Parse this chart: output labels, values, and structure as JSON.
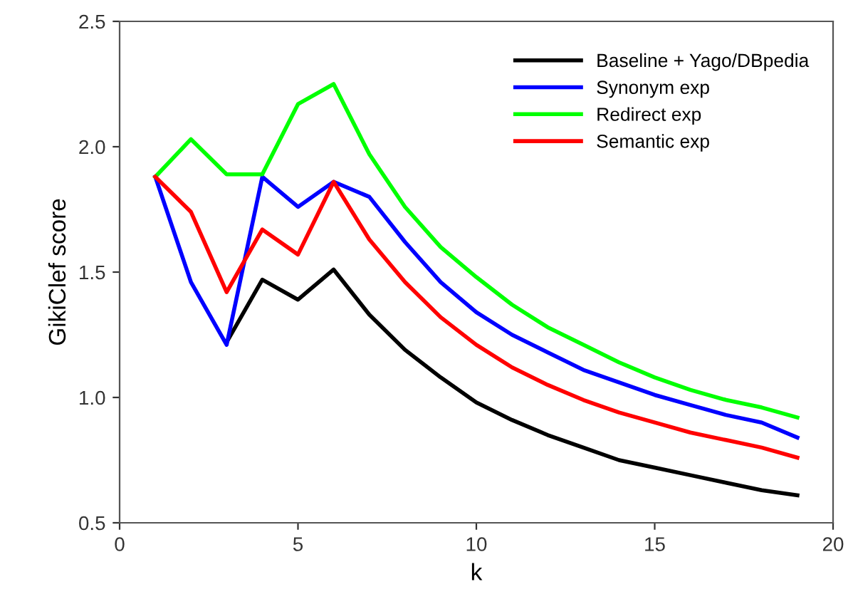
{
  "chart_data": {
    "type": "line",
    "xlabel": "k",
    "ylabel": "GikiClef score",
    "x": [
      1,
      2,
      3,
      4,
      5,
      6,
      7,
      8,
      9,
      10,
      11,
      12,
      13,
      14,
      15,
      16,
      17,
      18,
      19
    ],
    "series": [
      {
        "name": "Baseline + Yago/DBpedia",
        "color": "#000000",
        "values": [
          null,
          null,
          1.22,
          1.47,
          1.39,
          1.51,
          1.33,
          1.19,
          1.08,
          0.98,
          0.91,
          0.85,
          0.8,
          0.75,
          0.72,
          0.69,
          0.66,
          0.63,
          0.61
        ]
      },
      {
        "name": "Synonym exp",
        "color": "#0000ff",
        "values": [
          1.88,
          1.46,
          1.21,
          1.88,
          1.76,
          1.86,
          1.8,
          1.62,
          1.46,
          1.34,
          1.25,
          1.18,
          1.11,
          1.06,
          1.01,
          0.97,
          0.93,
          0.9,
          0.84
        ]
      },
      {
        "name": "Redirect exp",
        "color": "#00ff00",
        "values": [
          1.88,
          2.03,
          1.89,
          1.89,
          2.17,
          2.25,
          1.97,
          1.76,
          1.6,
          1.48,
          1.37,
          1.28,
          1.21,
          1.14,
          1.08,
          1.03,
          0.99,
          0.96,
          0.92
        ]
      },
      {
        "name": "Semantic exp",
        "color": "#ff0000",
        "values": [
          1.88,
          1.74,
          1.42,
          1.67,
          1.57,
          1.86,
          1.63,
          1.46,
          1.32,
          1.21,
          1.12,
          1.05,
          0.99,
          0.94,
          0.9,
          0.86,
          0.83,
          0.8,
          0.76
        ]
      }
    ],
    "xlim": [
      0,
      20
    ],
    "xticks": [
      0,
      5,
      10,
      15,
      20
    ],
    "ylim": [
      0.5,
      2.5
    ],
    "yticks": [
      {
        "value": 0.5,
        "label": "0.5"
      },
      {
        "value": 1.0,
        "label": "1.0"
      },
      {
        "value": 1.5,
        "label": "1.5"
      },
      {
        "value": 2.0,
        "label": "2.0"
      },
      {
        "value": 2.5,
        "label": "2.5"
      }
    ],
    "legend": "top right",
    "grid": false,
    "marker": "none",
    "line_style": "solid"
  }
}
